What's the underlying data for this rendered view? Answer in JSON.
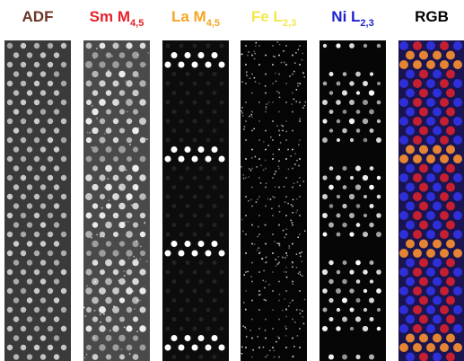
{
  "panels": [
    {
      "label": "ADF"
    },
    {
      "label": "Sm M",
      "subscript": "4,5"
    },
    {
      "label": "La M",
      "subscript": "4,5"
    },
    {
      "label": "Fe L",
      "subscript": "2,3"
    },
    {
      "label": "Ni L",
      "subscript": "2,3"
    },
    {
      "label": "RGB"
    }
  ]
}
